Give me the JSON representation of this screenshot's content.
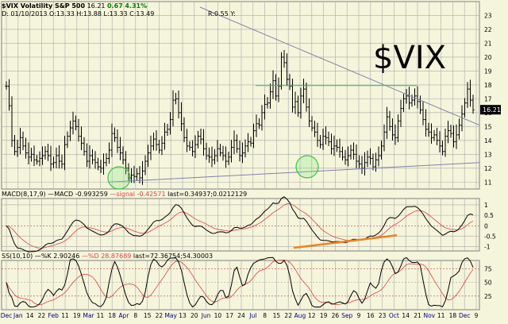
{
  "header": {
    "symbol": "$VIX Volatility S&P 500",
    "last": "16.21",
    "change": "0.67",
    "change_pct": "4.31%",
    "ohlc": "D: 01/10/2013 O:13.33 H:13.88 L:13.33 C:13.49",
    "cursor": "R:0.55 Y:"
  },
  "watermark": "$VIX",
  "last_price_tag": "16.21",
  "panels": {
    "macd_label": "MACD(8,17,9)",
    "macd_value": "—MACD -0.993259",
    "signal_value": "—signal -0.42571",
    "hist_value": "last=0.34937;0.0212129",
    "ss_label": "SS(10,10)",
    "ss_k": "—%K 2.90246",
    "ss_d": "—%D 28.87689",
    "ss_last": "last=72.36754;54.30003"
  },
  "x_ticks": [
    "Dec",
    "Jan",
    "14",
    "22",
    "Feb",
    "11",
    "19",
    "Mar",
    "11",
    "18",
    "Apr",
    "8",
    "15",
    "22",
    "May",
    "13",
    "20",
    "Jun",
    "10",
    "17",
    "24",
    "Jul",
    "8",
    "15",
    "22",
    "Aug",
    "12",
    "19",
    "26",
    "Sep",
    "9",
    "16",
    "23",
    "Oct",
    "14",
    "21",
    "Nov",
    "11",
    "18",
    "Dec",
    "9"
  ],
  "colors": {
    "background": "#f5f5dc",
    "grid": "#a9a9a9",
    "price_bars": "#000000",
    "trendline": "#8080b0",
    "resistance": "#40c040",
    "ma_red": "#e04040",
    "orange_trend": "#f08020",
    "circle": "#40c040"
  },
  "chart_data": [
    {
      "type": "ohlc",
      "title": "$VIX Volatility S&P 500",
      "ylim": [
        10.5,
        24
      ],
      "y_ticks": [
        11,
        12,
        13,
        14,
        15,
        16,
        17,
        18,
        19,
        20,
        21,
        22,
        23
      ],
      "closes": [
        17.9,
        16.5,
        14.0,
        13.2,
        13.5,
        14.2,
        13.6,
        13.1,
        12.8,
        13.0,
        12.6,
        12.5,
        12.7,
        12.9,
        13.2,
        12.9,
        12.3,
        12.4,
        12.9,
        12.5,
        12.3,
        13.7,
        14.3,
        14.9,
        15.4,
        15.0,
        14.3,
        13.8,
        13.2,
        12.5,
        12.9,
        12.6,
        12.4,
        12.1,
        12.0,
        12.4,
        12.7,
        13.3,
        14.5,
        14.2,
        13.5,
        13.1,
        12.6,
        12.0,
        11.3,
        11.5,
        11.4,
        11.6,
        11.3,
        11.8,
        12.5,
        13.1,
        13.6,
        14.1,
        13.7,
        13.3,
        13.8,
        14.6,
        14.8,
        15.5,
        16.9,
        17.0,
        16.0,
        15.2,
        14.2,
        13.6,
        13.5,
        13.2,
        13.7,
        14.3,
        14.1,
        13.4,
        12.9,
        12.8,
        12.6,
        12.9,
        13.4,
        13.1,
        12.9,
        12.5,
        12.8,
        13.5,
        14.0,
        13.4,
        12.9,
        13.1,
        13.6,
        13.9,
        13.8,
        14.7,
        15.2,
        15.1,
        16.0,
        16.6,
        16.7,
        17.5,
        18.3,
        17.2,
        17.9,
        20.0,
        19.6,
        18.4,
        17.9,
        16.4,
        16.8,
        16.0,
        17.2,
        17.7,
        16.4,
        15.4,
        14.9,
        14.6,
        14.0,
        13.7,
        14.3,
        14.2,
        13.9,
        13.4,
        13.6,
        13.5,
        13.2,
        12.8,
        12.6,
        12.9,
        13.3,
        13.0,
        12.5,
        12.3,
        12.0,
        12.4,
        12.8,
        12.7,
        12.1,
        12.6,
        12.9,
        13.6,
        14.6,
        15.7,
        15.0,
        14.4,
        14.2,
        15.4,
        16.3,
        17.0,
        17.2,
        16.7,
        16.9,
        17.2,
        16.8,
        16.2,
        15.5,
        14.8,
        14.6,
        14.2,
        14.4,
        14.0,
        13.6,
        13.2,
        14.3,
        14.7,
        14.5,
        13.9,
        14.4,
        15.1,
        15.9,
        16.7,
        17.7,
        16.9,
        16.2
      ]
    },
    {
      "type": "line",
      "title": "MACD(8,17,9)",
      "ylim": [
        -1.2,
        1.3
      ],
      "y_ticks": [
        -1,
        -0.5,
        0,
        0.5,
        1
      ],
      "series": [
        {
          "name": "MACD"
        },
        {
          "name": "signal"
        }
      ]
    },
    {
      "type": "line",
      "title": "SS(10,10)",
      "ylim": [
        0,
        90
      ],
      "y_ticks": [
        25,
        50,
        75
      ],
      "series": [
        {
          "name": "%K"
        },
        {
          "name": "%D"
        }
      ]
    }
  ]
}
